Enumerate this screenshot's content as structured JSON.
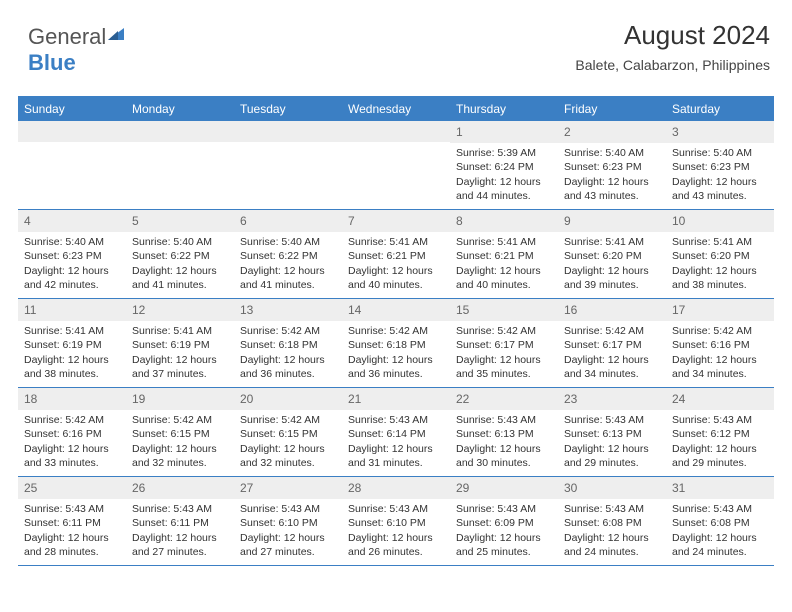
{
  "logo": {
    "word1": "General",
    "word2": "Blue",
    "icon_color": "#3b7fc4"
  },
  "header": {
    "title": "August 2024",
    "location": "Balete, Calabarzon, Philippines"
  },
  "colors": {
    "header_bar": "#3b7fc4",
    "daynum_bg": "#eeeeee",
    "text": "#333333",
    "border": "#3b7fc4"
  },
  "day_names": [
    "Sunday",
    "Monday",
    "Tuesday",
    "Wednesday",
    "Thursday",
    "Friday",
    "Saturday"
  ],
  "weeks": [
    [
      {
        "n": "",
        "lines": []
      },
      {
        "n": "",
        "lines": []
      },
      {
        "n": "",
        "lines": []
      },
      {
        "n": "",
        "lines": []
      },
      {
        "n": "1",
        "lines": [
          "Sunrise: 5:39 AM",
          "Sunset: 6:24 PM",
          "Daylight: 12 hours and 44 minutes."
        ]
      },
      {
        "n": "2",
        "lines": [
          "Sunrise: 5:40 AM",
          "Sunset: 6:23 PM",
          "Daylight: 12 hours and 43 minutes."
        ]
      },
      {
        "n": "3",
        "lines": [
          "Sunrise: 5:40 AM",
          "Sunset: 6:23 PM",
          "Daylight: 12 hours and 43 minutes."
        ]
      }
    ],
    [
      {
        "n": "4",
        "lines": [
          "Sunrise: 5:40 AM",
          "Sunset: 6:23 PM",
          "Daylight: 12 hours and 42 minutes."
        ]
      },
      {
        "n": "5",
        "lines": [
          "Sunrise: 5:40 AM",
          "Sunset: 6:22 PM",
          "Daylight: 12 hours and 41 minutes."
        ]
      },
      {
        "n": "6",
        "lines": [
          "Sunrise: 5:40 AM",
          "Sunset: 6:22 PM",
          "Daylight: 12 hours and 41 minutes."
        ]
      },
      {
        "n": "7",
        "lines": [
          "Sunrise: 5:41 AM",
          "Sunset: 6:21 PM",
          "Daylight: 12 hours and 40 minutes."
        ]
      },
      {
        "n": "8",
        "lines": [
          "Sunrise: 5:41 AM",
          "Sunset: 6:21 PM",
          "Daylight: 12 hours and 40 minutes."
        ]
      },
      {
        "n": "9",
        "lines": [
          "Sunrise: 5:41 AM",
          "Sunset: 6:20 PM",
          "Daylight: 12 hours and 39 minutes."
        ]
      },
      {
        "n": "10",
        "lines": [
          "Sunrise: 5:41 AM",
          "Sunset: 6:20 PM",
          "Daylight: 12 hours and 38 minutes."
        ]
      }
    ],
    [
      {
        "n": "11",
        "lines": [
          "Sunrise: 5:41 AM",
          "Sunset: 6:19 PM",
          "Daylight: 12 hours and 38 minutes."
        ]
      },
      {
        "n": "12",
        "lines": [
          "Sunrise: 5:41 AM",
          "Sunset: 6:19 PM",
          "Daylight: 12 hours and 37 minutes."
        ]
      },
      {
        "n": "13",
        "lines": [
          "Sunrise: 5:42 AM",
          "Sunset: 6:18 PM",
          "Daylight: 12 hours and 36 minutes."
        ]
      },
      {
        "n": "14",
        "lines": [
          "Sunrise: 5:42 AM",
          "Sunset: 6:18 PM",
          "Daylight: 12 hours and 36 minutes."
        ]
      },
      {
        "n": "15",
        "lines": [
          "Sunrise: 5:42 AM",
          "Sunset: 6:17 PM",
          "Daylight: 12 hours and 35 minutes."
        ]
      },
      {
        "n": "16",
        "lines": [
          "Sunrise: 5:42 AM",
          "Sunset: 6:17 PM",
          "Daylight: 12 hours and 34 minutes."
        ]
      },
      {
        "n": "17",
        "lines": [
          "Sunrise: 5:42 AM",
          "Sunset: 6:16 PM",
          "Daylight: 12 hours and 34 minutes."
        ]
      }
    ],
    [
      {
        "n": "18",
        "lines": [
          "Sunrise: 5:42 AM",
          "Sunset: 6:16 PM",
          "Daylight: 12 hours and 33 minutes."
        ]
      },
      {
        "n": "19",
        "lines": [
          "Sunrise: 5:42 AM",
          "Sunset: 6:15 PM",
          "Daylight: 12 hours and 32 minutes."
        ]
      },
      {
        "n": "20",
        "lines": [
          "Sunrise: 5:42 AM",
          "Sunset: 6:15 PM",
          "Daylight: 12 hours and 32 minutes."
        ]
      },
      {
        "n": "21",
        "lines": [
          "Sunrise: 5:43 AM",
          "Sunset: 6:14 PM",
          "Daylight: 12 hours and 31 minutes."
        ]
      },
      {
        "n": "22",
        "lines": [
          "Sunrise: 5:43 AM",
          "Sunset: 6:13 PM",
          "Daylight: 12 hours and 30 minutes."
        ]
      },
      {
        "n": "23",
        "lines": [
          "Sunrise: 5:43 AM",
          "Sunset: 6:13 PM",
          "Daylight: 12 hours and 29 minutes."
        ]
      },
      {
        "n": "24",
        "lines": [
          "Sunrise: 5:43 AM",
          "Sunset: 6:12 PM",
          "Daylight: 12 hours and 29 minutes."
        ]
      }
    ],
    [
      {
        "n": "25",
        "lines": [
          "Sunrise: 5:43 AM",
          "Sunset: 6:11 PM",
          "Daylight: 12 hours and 28 minutes."
        ]
      },
      {
        "n": "26",
        "lines": [
          "Sunrise: 5:43 AM",
          "Sunset: 6:11 PM",
          "Daylight: 12 hours and 27 minutes."
        ]
      },
      {
        "n": "27",
        "lines": [
          "Sunrise: 5:43 AM",
          "Sunset: 6:10 PM",
          "Daylight: 12 hours and 27 minutes."
        ]
      },
      {
        "n": "28",
        "lines": [
          "Sunrise: 5:43 AM",
          "Sunset: 6:10 PM",
          "Daylight: 12 hours and 26 minutes."
        ]
      },
      {
        "n": "29",
        "lines": [
          "Sunrise: 5:43 AM",
          "Sunset: 6:09 PM",
          "Daylight: 12 hours and 25 minutes."
        ]
      },
      {
        "n": "30",
        "lines": [
          "Sunrise: 5:43 AM",
          "Sunset: 6:08 PM",
          "Daylight: 12 hours and 24 minutes."
        ]
      },
      {
        "n": "31",
        "lines": [
          "Sunrise: 5:43 AM",
          "Sunset: 6:08 PM",
          "Daylight: 12 hours and 24 minutes."
        ]
      }
    ]
  ]
}
